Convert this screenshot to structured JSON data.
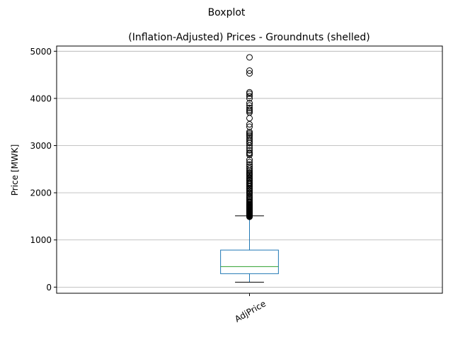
{
  "chart_data": {
    "type": "boxplot",
    "suptitle": "Boxplot",
    "title": "(Inflation-Adjusted) Prices - Groundnuts (shelled)",
    "xlabel": "",
    "ylabel": "Price [MWK]",
    "categories": [
      "AdjPrice"
    ],
    "ylim": [
      -130,
      5110
    ],
    "yticks": [
      0,
      1000,
      2000,
      3000,
      4000,
      5000
    ],
    "grid": "horizontal",
    "boxes": [
      {
        "category": "AdjPrice",
        "whisker_low": 105,
        "q1": 285,
        "median": 435,
        "q3": 785,
        "whisker_high": 1510,
        "outliers": [
          1490,
          1500,
          1510,
          1520,
          1530,
          1540,
          1550,
          1560,
          1570,
          1580,
          1590,
          1600,
          1610,
          1620,
          1630,
          1640,
          1650,
          1660,
          1670,
          1680,
          1690,
          1700,
          1710,
          1720,
          1730,
          1740,
          1750,
          1760,
          1780,
          1800,
          1820,
          1850,
          1870,
          1900,
          1920,
          1950,
          1980,
          2000,
          2030,
          2050,
          2080,
          2100,
          2130,
          2150,
          2180,
          2200,
          2220,
          2250,
          2270,
          2300,
          2320,
          2350,
          2380,
          2400,
          2420,
          2450,
          2480,
          2520,
          2560,
          2600,
          2650,
          2700,
          2800,
          2830,
          2850,
          2900,
          2950,
          3000,
          3050,
          3080,
          3120,
          3160,
          3200,
          3230,
          3260,
          3290,
          3400,
          3450,
          3580,
          3700,
          3730,
          3760,
          3800,
          3850,
          3900,
          4000,
          4050,
          4100,
          4130,
          4530,
          4590,
          4870
        ]
      }
    ],
    "colors": {
      "box": "#1f77b4",
      "median": "#2ca02c",
      "whisker_cap": "#000000",
      "outlier": "#000000",
      "grid": "#b0b0b0"
    }
  }
}
